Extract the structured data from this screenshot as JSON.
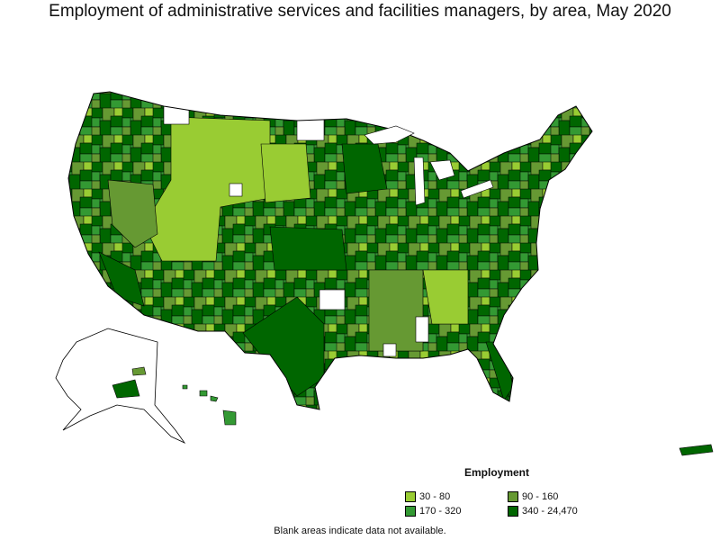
{
  "title": "Employment of administrative services and facilities managers, by area, May 2020",
  "legend": {
    "title": "Employment",
    "items": [
      {
        "label": "30 - 80",
        "color": "#99cc33"
      },
      {
        "label": "90 - 160",
        "color": "#669933"
      },
      {
        "label": "170 - 320",
        "color": "#339933"
      },
      {
        "label": "340 - 24,470",
        "color": "#006600"
      }
    ]
  },
  "note": "Blank areas indicate data not available.",
  "colors": {
    "border": "#000000",
    "blank": "#ffffff"
  }
}
